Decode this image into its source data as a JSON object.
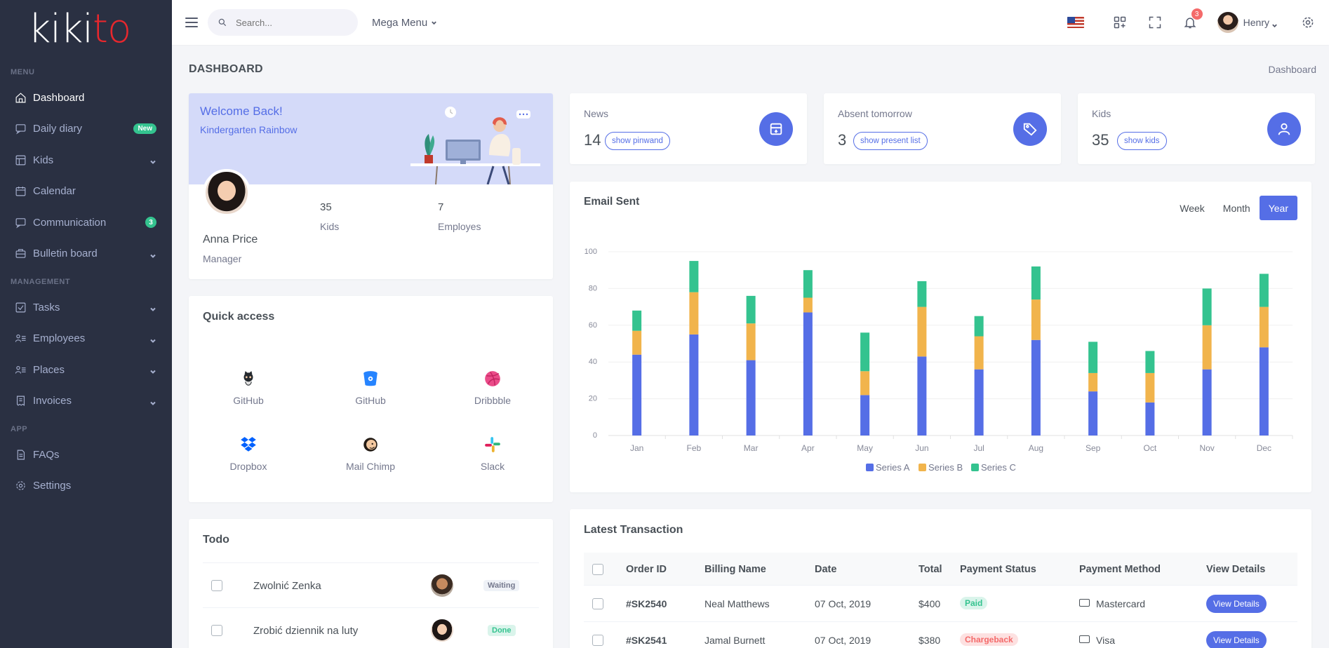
{
  "brand": {
    "logo_white": "kiki",
    "logo_red": "to"
  },
  "sidebar": {
    "sections": [
      "Menu",
      "Management",
      "App"
    ],
    "items": [
      {
        "label": "Dashboard",
        "icon": "home-icon",
        "active": true
      },
      {
        "label": "Daily diary",
        "icon": "chat-icon",
        "badge": "New"
      },
      {
        "label": "Kids",
        "icon": "grid-icon",
        "chevron": true
      },
      {
        "label": "Calendar",
        "icon": "calendar-icon"
      },
      {
        "label": "Communication",
        "icon": "chat-icon",
        "badge": "3"
      },
      {
        "label": "Bulletin board",
        "icon": "briefcase-icon",
        "chevron": true
      },
      {
        "label": "Tasks",
        "icon": "checkbox-icon",
        "chevron": true
      },
      {
        "label": "Employees",
        "icon": "users-list-icon",
        "chevron": true
      },
      {
        "label": "Places",
        "icon": "users-list-icon",
        "chevron": true
      },
      {
        "label": "Invoices",
        "icon": "receipt-icon",
        "chevron": true
      },
      {
        "label": "FAQs",
        "icon": "file-icon"
      },
      {
        "label": "Settings",
        "icon": "gear-icon"
      }
    ]
  },
  "topbar": {
    "search_placeholder": "Search...",
    "mega_menu": "Mega Menu",
    "notification_count": "3",
    "user_name": "Henry"
  },
  "page": {
    "title": "DASHBOARD",
    "breadcrumb": "Dashboard"
  },
  "welcome": {
    "title": "Welcome Back!",
    "subtitle": "Kindergarten Rainbow",
    "name": "Anna Price",
    "role": "Manager",
    "stats": [
      {
        "value": "35",
        "label": "Kids"
      },
      {
        "value": "7",
        "label": "Employes"
      }
    ]
  },
  "stat_cards": [
    {
      "title": "News",
      "value": "14",
      "button": "show pinwand",
      "icon": "archive-icon"
    },
    {
      "title": "Absent tomorrow",
      "value": "3",
      "button": "show present list",
      "icon": "tag-icon"
    },
    {
      "title": "Kids",
      "value": "35",
      "button": "show kids",
      "icon": "user-icon"
    }
  ],
  "email_chart": {
    "title": "Email Sent",
    "ranges": [
      "Week",
      "Month",
      "Year"
    ],
    "active_range": "Year"
  },
  "chart_data": {
    "type": "bar",
    "stacked": true,
    "categories": [
      "Jan",
      "Feb",
      "Mar",
      "Apr",
      "May",
      "Jun",
      "Jul",
      "Aug",
      "Sep",
      "Oct",
      "Nov",
      "Dec"
    ],
    "series": [
      {
        "name": "Series A",
        "color": "#556ee6",
        "values": [
          44,
          55,
          41,
          67,
          22,
          43,
          36,
          52,
          24,
          18,
          36,
          48
        ]
      },
      {
        "name": "Series B",
        "color": "#f1b44c",
        "values": [
          13,
          23,
          20,
          8,
          13,
          27,
          18,
          22,
          10,
          16,
          24,
          22
        ]
      },
      {
        "name": "Series C",
        "color": "#34c38f",
        "values": [
          11,
          17,
          15,
          15,
          21,
          14,
          11,
          18,
          17,
          12,
          20,
          18
        ]
      }
    ],
    "yticks": [
      "0",
      "20",
      "40",
      "60",
      "80",
      "100"
    ],
    "ylim": [
      0,
      100
    ],
    "grid": true,
    "legend_position": "bottom"
  },
  "quick_access": {
    "title": "Quick access",
    "items": [
      {
        "label": "GitHub",
        "icon": "github-icon",
        "color": "#24292e"
      },
      {
        "label": "GitHub",
        "icon": "bitbucket-icon",
        "color": "#2684ff"
      },
      {
        "label": "Dribbble",
        "icon": "dribbble-icon",
        "color": "#ea4c89"
      },
      {
        "label": "Dropbox",
        "icon": "dropbox-icon",
        "color": "#0061fe"
      },
      {
        "label": "Mail Chimp",
        "icon": "mailchimp-icon",
        "color": "#241c15"
      },
      {
        "label": "Slack",
        "icon": "slack-icon",
        "color": "#e01e5a"
      }
    ]
  },
  "todo": {
    "title": "Todo",
    "items": [
      {
        "text": "Zwolnić Zenka",
        "status": "Waiting"
      },
      {
        "text": "Zrobić dziennik na luty",
        "status": "Done"
      }
    ]
  },
  "transactions": {
    "title": "Latest Transaction",
    "columns": [
      "Order ID",
      "Billing Name",
      "Date",
      "Total",
      "Payment Status",
      "Payment Method",
      "View Details"
    ],
    "rows": [
      {
        "id": "#SK2540",
        "name": "Neal Matthews",
        "date": "07 Oct, 2019",
        "total": "$400",
        "status": "Paid",
        "method": "Mastercard",
        "action": "View Details"
      },
      {
        "id": "#SK2541",
        "name": "Jamal Burnett",
        "date": "07 Oct, 2019",
        "total": "$380",
        "status": "Chargeback",
        "method": "Visa",
        "action": "View Details"
      }
    ]
  }
}
